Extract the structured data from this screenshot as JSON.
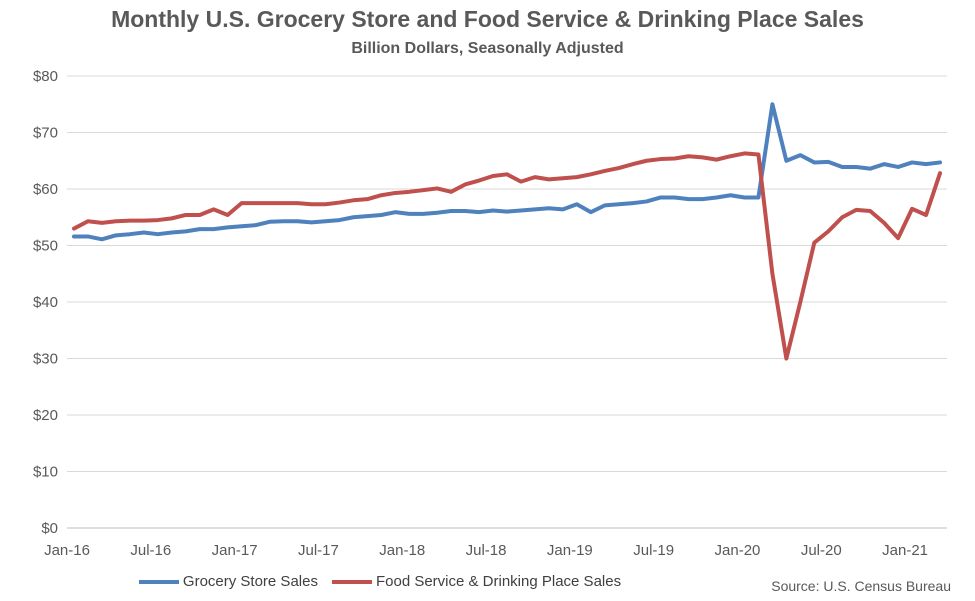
{
  "chart_data": {
    "type": "line",
    "title": "Monthly U.S. Grocery Store and Food Service & Drinking Place Sales",
    "subtitle": "Billion Dollars, Seasonally Adjusted",
    "source": "Source: U.S. Census Bureau",
    "xlabel": "",
    "ylabel": "",
    "ylim": [
      0,
      80
    ],
    "yticks": [
      0,
      10,
      20,
      30,
      40,
      50,
      60,
      70,
      80
    ],
    "ytick_labels": [
      "$0",
      "$10",
      "$20",
      "$30",
      "$40",
      "$50",
      "$60",
      "$70",
      "$80"
    ],
    "x_start": "2016-01",
    "x_end": "2021-03",
    "xtick_labels": [
      "Jan-16",
      "Jul-16",
      "Jan-17",
      "Jul-17",
      "Jan-18",
      "Jul-18",
      "Jan-19",
      "Jul-19",
      "Jan-20",
      "Jul-20",
      "Jan-21"
    ],
    "grid": true,
    "legend_position": "bottom",
    "x": [
      "2016-01",
      "2016-02",
      "2016-03",
      "2016-04",
      "2016-05",
      "2016-06",
      "2016-07",
      "2016-08",
      "2016-09",
      "2016-10",
      "2016-11",
      "2016-12",
      "2017-01",
      "2017-02",
      "2017-03",
      "2017-04",
      "2017-05",
      "2017-06",
      "2017-07",
      "2017-08",
      "2017-09",
      "2017-10",
      "2017-11",
      "2017-12",
      "2018-01",
      "2018-02",
      "2018-03",
      "2018-04",
      "2018-05",
      "2018-06",
      "2018-07",
      "2018-08",
      "2018-09",
      "2018-10",
      "2018-11",
      "2018-12",
      "2019-01",
      "2019-02",
      "2019-03",
      "2019-04",
      "2019-05",
      "2019-06",
      "2019-07",
      "2019-08",
      "2019-09",
      "2019-10",
      "2019-11",
      "2019-12",
      "2020-01",
      "2020-02",
      "2020-03",
      "2020-04",
      "2020-05",
      "2020-06",
      "2020-07",
      "2020-08",
      "2020-09",
      "2020-10",
      "2020-11",
      "2020-12",
      "2021-01",
      "2021-02",
      "2021-03"
    ],
    "series": [
      {
        "name": "Grocery Store Sales",
        "color": "#4f81bd",
        "values": [
          51.6,
          51.6,
          51.1,
          51.8,
          52.0,
          52.3,
          52.0,
          52.3,
          52.5,
          52.9,
          52.9,
          53.2,
          53.4,
          53.6,
          54.2,
          54.3,
          54.3,
          54.1,
          54.3,
          54.5,
          55.0,
          55.2,
          55.4,
          55.9,
          55.6,
          55.6,
          55.8,
          56.1,
          56.1,
          55.9,
          56.2,
          56.0,
          56.2,
          56.4,
          56.6,
          56.4,
          57.3,
          55.9,
          57.1,
          57.3,
          57.5,
          57.8,
          58.5,
          58.5,
          58.2,
          58.2,
          58.5,
          58.9,
          58.5,
          58.5,
          75.0,
          65.0,
          66.0,
          64.7,
          64.8,
          63.9,
          63.9,
          63.6,
          64.4,
          63.9,
          64.7,
          64.4,
          64.7
        ]
      },
      {
        "name": "Food Service & Drinking Place Sales",
        "color": "#c0504d",
        "values": [
          53.0,
          54.3,
          54.0,
          54.3,
          54.4,
          54.4,
          54.5,
          54.8,
          55.4,
          55.4,
          56.4,
          55.4,
          57.5,
          57.5,
          57.5,
          57.5,
          57.5,
          57.3,
          57.3,
          57.6,
          58.0,
          58.2,
          58.9,
          59.3,
          59.5,
          59.8,
          60.1,
          59.5,
          60.8,
          61.5,
          62.3,
          62.6,
          61.3,
          62.1,
          61.7,
          61.9,
          62.1,
          62.6,
          63.2,
          63.7,
          64.4,
          65.0,
          65.3,
          65.4,
          65.8,
          65.6,
          65.2,
          65.8,
          66.3,
          66.1,
          45.0,
          30.0,
          40.0,
          50.5,
          52.5,
          55.0,
          56.3,
          56.1,
          54.0,
          51.3,
          56.5,
          55.4,
          62.8
        ]
      }
    ]
  }
}
